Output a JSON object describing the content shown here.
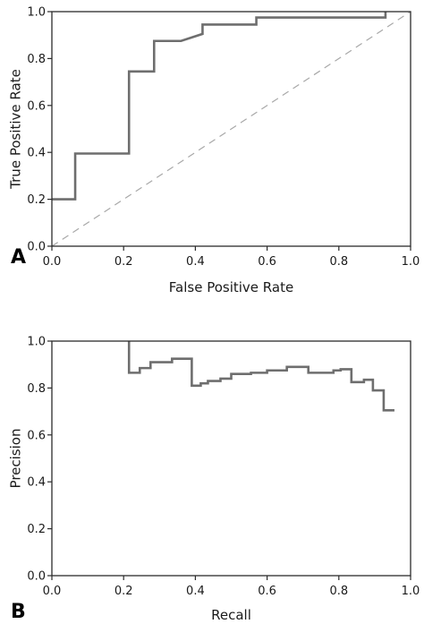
{
  "chart_data": [
    {
      "type": "line",
      "panel_label": "A",
      "xlabel": "False Positive Rate",
      "ylabel": "True Positive Rate",
      "xlim": [
        0.0,
        1.0
      ],
      "ylim": [
        0.0,
        1.0
      ],
      "xticks": [
        "0.0",
        "0.2",
        "0.4",
        "0.6",
        "0.8",
        "1.0"
      ],
      "yticks": [
        "0.0",
        "0.2",
        "0.4",
        "0.6",
        "0.8",
        "1.0"
      ],
      "grid": false,
      "series": [
        {
          "style": "step",
          "color": "#6e6e6e",
          "points": [
            [
              0.0,
              0.2
            ],
            [
              0.065,
              0.2
            ],
            [
              0.065,
              0.395
            ],
            [
              0.215,
              0.395
            ],
            [
              0.215,
              0.745
            ],
            [
              0.285,
              0.745
            ],
            [
              0.285,
              0.875
            ],
            [
              0.36,
              0.875
            ],
            [
              0.42,
              0.905
            ],
            [
              0.42,
              0.945
            ],
            [
              0.57,
              0.945
            ],
            [
              0.57,
              0.975
            ],
            [
              0.93,
              0.975
            ],
            [
              0.93,
              1.0
            ]
          ]
        },
        {
          "style": "dashed",
          "color": "#a8a8a8",
          "points": [
            [
              0.0,
              0.0
            ],
            [
              1.0,
              1.0
            ]
          ]
        }
      ]
    },
    {
      "type": "line",
      "panel_label": "B",
      "xlabel": "Recall",
      "ylabel": "Precision",
      "xlim": [
        0.0,
        1.0
      ],
      "ylim": [
        0.0,
        1.0
      ],
      "xticks": [
        "0.0",
        "0.2",
        "0.4",
        "0.6",
        "0.8",
        "1.0"
      ],
      "yticks": [
        "0.0",
        "0.2",
        "0.4",
        "0.6",
        "0.8",
        "1.0"
      ],
      "grid": false,
      "series": [
        {
          "style": "step",
          "color": "#6e6e6e",
          "points": [
            [
              0.215,
              1.0
            ],
            [
              0.215,
              0.865
            ],
            [
              0.245,
              0.865
            ],
            [
              0.245,
              0.885
            ],
            [
              0.275,
              0.885
            ],
            [
              0.275,
              0.91
            ],
            [
              0.335,
              0.91
            ],
            [
              0.335,
              0.925
            ],
            [
              0.39,
              0.925
            ],
            [
              0.39,
              0.81
            ],
            [
              0.415,
              0.81
            ],
            [
              0.415,
              0.82
            ],
            [
              0.435,
              0.82
            ],
            [
              0.435,
              0.83
            ],
            [
              0.47,
              0.83
            ],
            [
              0.47,
              0.84
            ],
            [
              0.5,
              0.84
            ],
            [
              0.5,
              0.86
            ],
            [
              0.555,
              0.86
            ],
            [
              0.555,
              0.865
            ],
            [
              0.6,
              0.865
            ],
            [
              0.6,
              0.875
            ],
            [
              0.655,
              0.875
            ],
            [
              0.655,
              0.89
            ],
            [
              0.715,
              0.89
            ],
            [
              0.715,
              0.865
            ],
            [
              0.785,
              0.865
            ],
            [
              0.785,
              0.875
            ],
            [
              0.805,
              0.875
            ],
            [
              0.805,
              0.88
            ],
            [
              0.835,
              0.88
            ],
            [
              0.835,
              0.825
            ],
            [
              0.87,
              0.825
            ],
            [
              0.87,
              0.835
            ],
            [
              0.895,
              0.835
            ],
            [
              0.895,
              0.79
            ],
            [
              0.925,
              0.79
            ],
            [
              0.925,
              0.705
            ],
            [
              0.955,
              0.705
            ]
          ]
        }
      ]
    }
  ]
}
